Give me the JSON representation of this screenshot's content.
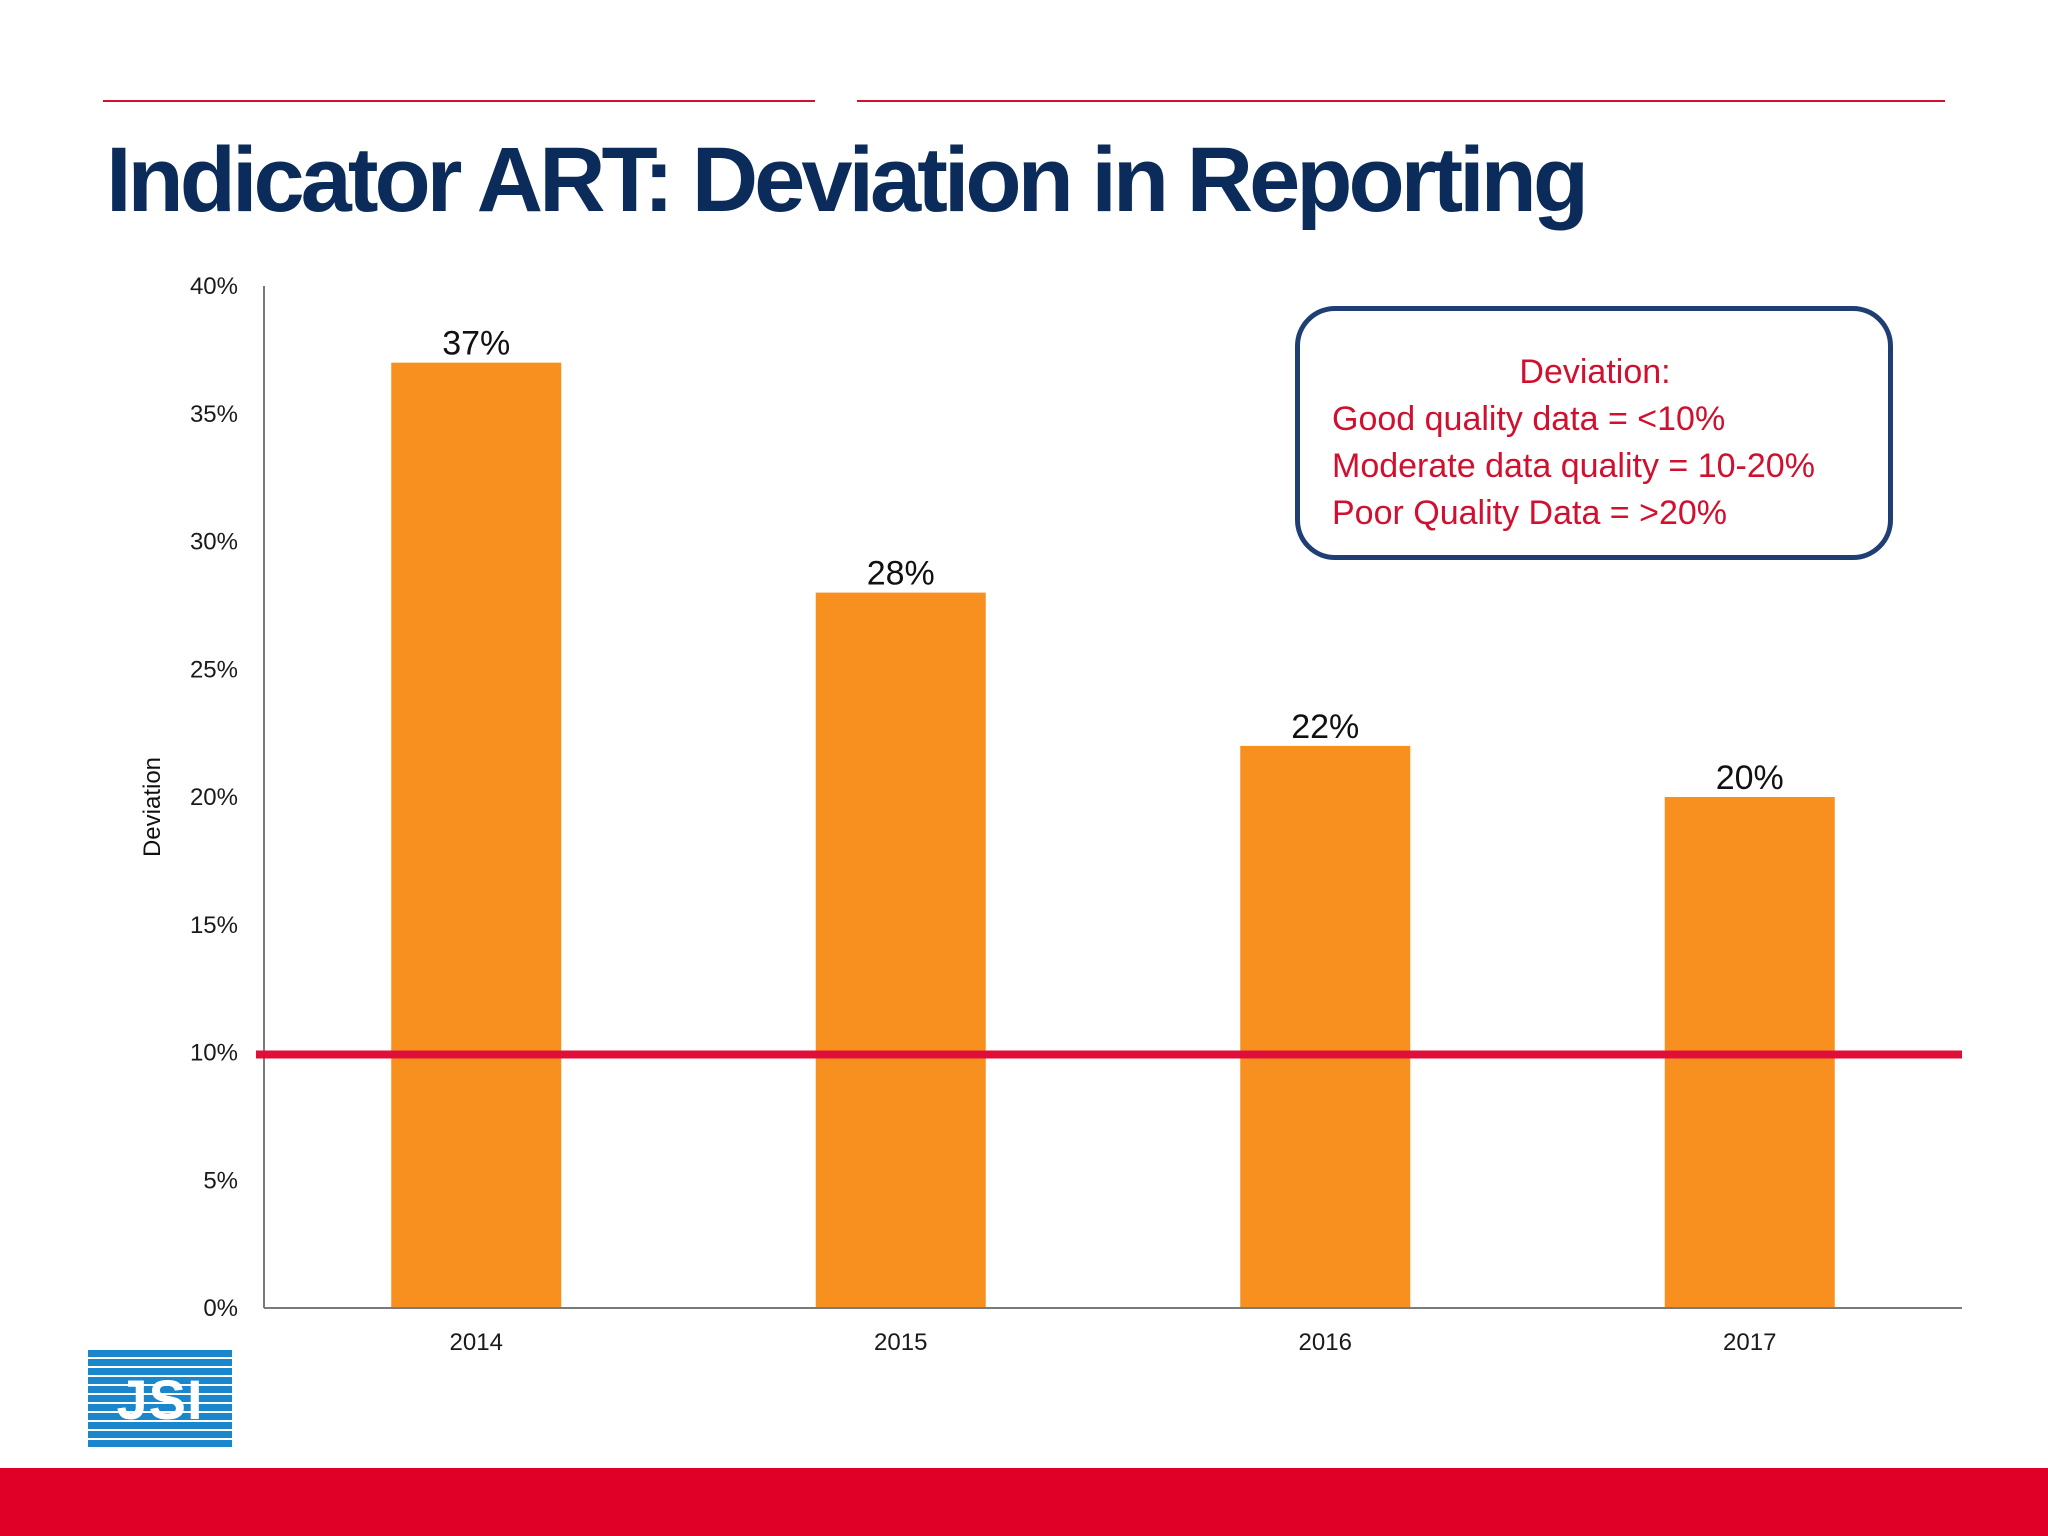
{
  "slide": {
    "title": "Indicator ART: Deviation in Reporting",
    "logo_text": "JSI",
    "colors": {
      "title": "#0b2c5a",
      "accent_red": "#d3102e",
      "bar_fill": "#f7901e",
      "threshold_line": "#e00f3a",
      "legend_border": "#1f3f74",
      "legend_text": "#d0102e",
      "bottom_band": "#e00027"
    }
  },
  "legend": {
    "title": "Deviation:",
    "lines": [
      "Good quality data = <10%",
      "Moderate data quality = 10-20%",
      "Poor Quality Data = >20%"
    ]
  },
  "chart_data": {
    "type": "bar",
    "categories": [
      "2014",
      "2015",
      "2016",
      "2017"
    ],
    "values": [
      37,
      28,
      22,
      20
    ],
    "data_labels": [
      "37%",
      "28%",
      "22%",
      "20%"
    ],
    "ylabel": "Deviation",
    "ylim": [
      0,
      40
    ],
    "yticks": [
      0,
      5,
      10,
      15,
      20,
      25,
      30,
      35,
      40
    ],
    "ytick_labels": [
      "0%",
      "5%",
      "10%",
      "15%",
      "20%",
      "25%",
      "30%",
      "35%",
      "40%"
    ],
    "reference_line": 10,
    "grid": false,
    "legend": "none"
  }
}
